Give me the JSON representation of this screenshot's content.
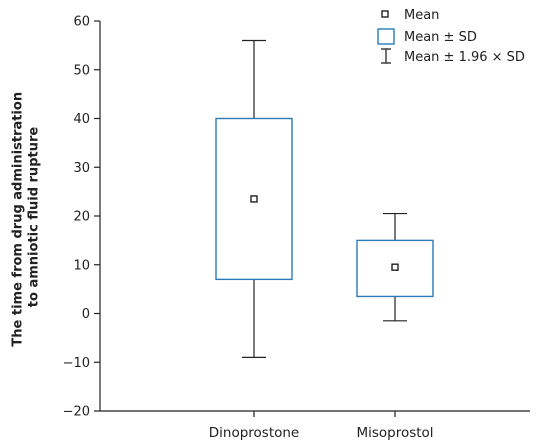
{
  "chart_data": {
    "type": "box",
    "title": "",
    "ylabel_lines": [
      "The time from drug administration",
      "to amniotic fluid rupture"
    ],
    "xlabel": "",
    "ylim": [
      -20,
      60
    ],
    "yticks": [
      -20,
      -10,
      0,
      10,
      20,
      30,
      40,
      50,
      60
    ],
    "yticks_text": [
      "−20",
      "−10",
      "0",
      "10",
      "20",
      "30",
      "40",
      "50",
      "60"
    ],
    "categories": [
      "Dinoprostone",
      "Misoprostol"
    ],
    "series": [
      {
        "category": "Dinoprostone",
        "mean": 23.5,
        "mean_minus_sd": 7,
        "mean_plus_sd": 40,
        "mean_minus_1_96sd": -9,
        "mean_plus_1_96sd": 56
      },
      {
        "category": "Misoprostol",
        "mean": 9.5,
        "mean_minus_sd": 3.5,
        "mean_plus_sd": 15,
        "mean_minus_1_96sd": -1.5,
        "mean_plus_1_96sd": 20.5
      }
    ],
    "legend": {
      "placement": "top-right",
      "entries": [
        "Mean",
        "Mean ± SD",
        "Mean ± 1.96 × SD"
      ]
    },
    "grid": false,
    "colors": {
      "box": "#2b7bb9",
      "whisker": "#222222",
      "mean": "#222222",
      "axis": "#222222"
    }
  }
}
